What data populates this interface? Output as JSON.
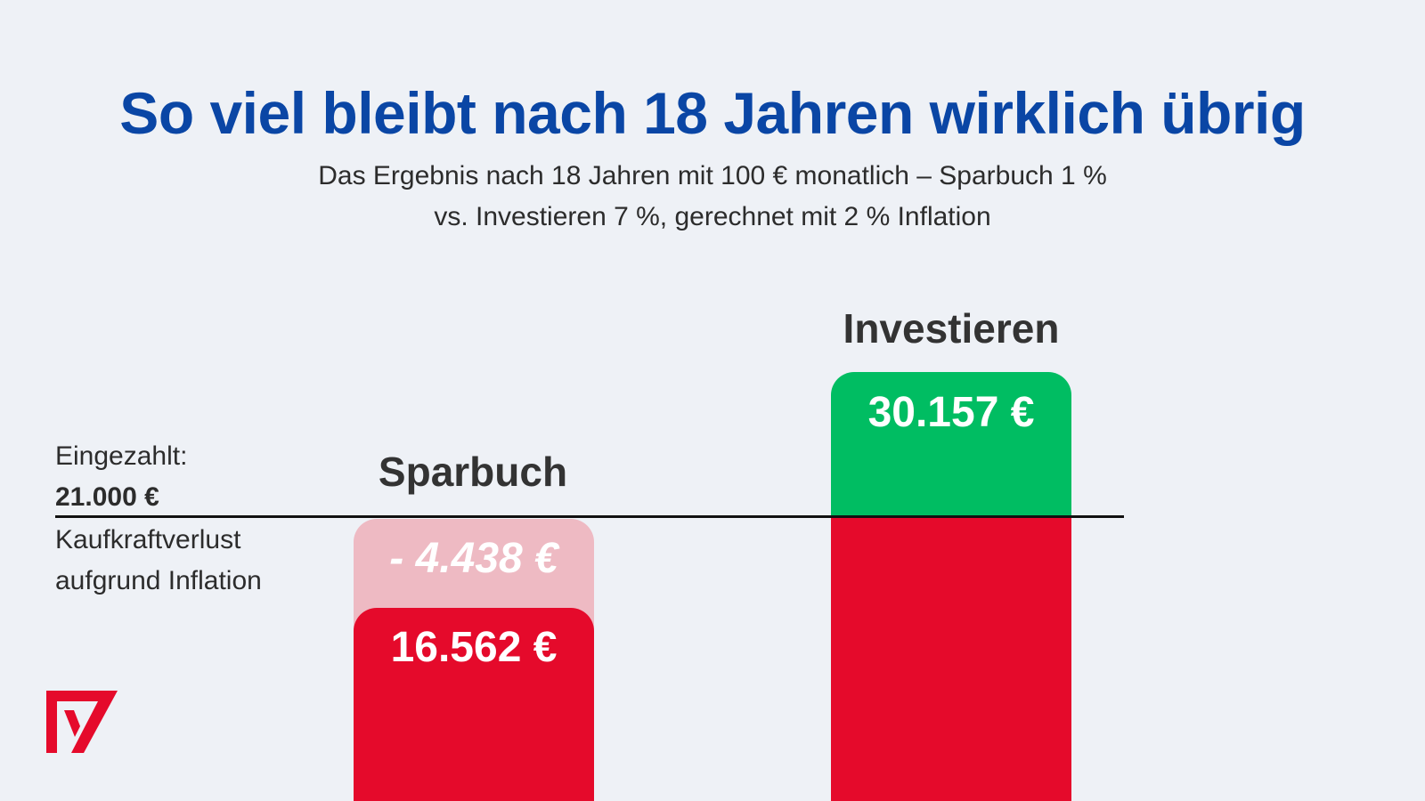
{
  "header": {
    "title": "So viel bleibt nach 18 Jahren wirklich übrig",
    "subtitle_line1": "Das Ergebnis nach 18 Jahren mit 100 € monatlich – Sparbuch 1 %",
    "subtitle_line2": "vs. Investieren 7 %, gerechnet mit 2 % Inflation"
  },
  "labels": {
    "paid_in": "Eingezahlt:",
    "paid_in_amount": "21.000 €",
    "loss_line1": "Kaufkraftverlust",
    "loss_line2": "aufgrund Inflation"
  },
  "colors": {
    "title": "#0a46a5",
    "loss_light": "#eebac3",
    "red": "#e50a2b",
    "green": "#00bd62",
    "background": "#eef1f6"
  },
  "chart_data": {
    "type": "bar",
    "title": "So viel bleibt nach 18 Jahren wirklich übrig",
    "categories": [
      "Sparbuch",
      "Investieren"
    ],
    "reference_line": {
      "label": "Eingezahlt:",
      "value": 21000,
      "value_label": "21.000 €"
    },
    "series": [
      {
        "name": "Sparbuch",
        "real_value": 16562,
        "real_value_label": "16.562 €",
        "inflation_loss": -4438,
        "inflation_loss_label": "- 4.438 €"
      },
      {
        "name": "Investieren",
        "gain_over_paid_in": 30157,
        "gain_label": "30.157 €"
      }
    ],
    "currency": "€"
  },
  "logo": {
    "icon": "brand-logo-icon"
  }
}
